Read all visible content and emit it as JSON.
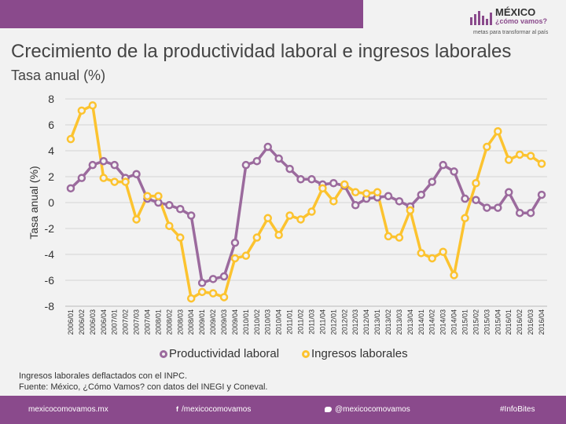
{
  "header": {
    "logo_title": "MÉXICO",
    "logo_subtitle": "¿cómo vamos?",
    "logo_tagline": "metas para transformar al país"
  },
  "title": "Crecimiento de la productividad laboral e ingresos laborales",
  "subtitle": "Tasa anual (%)",
  "notes": [
    "Ingresos laborales deflactados con el INPC.",
    "Fuente: México, ¿Cómo Vamos? con datos del INEGI y Coneval."
  ],
  "footer": {
    "website": "mexicocomovamos.mx",
    "facebook": "/mexicocomovamos",
    "twitter": "@mexicocomovamos",
    "hashtag": "#InfoBites"
  },
  "colors": {
    "accent": "#8a4a8c",
    "productividad": "#9b6a9d",
    "ingresos": "#fcc32f"
  },
  "chart_data": {
    "type": "line",
    "title": "Crecimiento de la productividad laboral e ingresos laborales",
    "ylabel": "Tasa anual (%)",
    "xlabel": "",
    "ylim": [
      -8,
      8
    ],
    "yticks": [
      8,
      6,
      4,
      2,
      0,
      -2,
      -4,
      -6,
      -8
    ],
    "grid": true,
    "legend_position": "bottom",
    "categories": [
      "2006/01",
      "2006/02",
      "2006/03",
      "2006/04",
      "2007/01",
      "2007/02",
      "2007/03",
      "2007/04",
      "2008/01",
      "2008/02",
      "2008/03",
      "2008/04",
      "2009/01",
      "2009/02",
      "2009/03",
      "2009/04",
      "2010/01",
      "2010/02",
      "2010/03",
      "2010/04",
      "2011/01",
      "2011/02",
      "2011/03",
      "2011/04",
      "2012/01",
      "2012/02",
      "2012/03",
      "2012/04",
      "2013/01",
      "2013/02",
      "2013/03",
      "2013/04",
      "2014/01",
      "2014/02",
      "2014/03",
      "2014/04",
      "2015/01",
      "2015/02",
      "2015/03",
      "2015/04",
      "2016/01",
      "2016/02",
      "2016/03",
      "2016/04"
    ],
    "series": [
      {
        "name": "Productividad laboral",
        "values": [
          1.1,
          1.9,
          2.9,
          3.2,
          2.9,
          1.9,
          2.2,
          0.3,
          0.0,
          -0.2,
          -0.5,
          -1.0,
          -6.2,
          -5.9,
          -5.7,
          -3.1,
          2.9,
          3.2,
          4.3,
          3.4,
          2.6,
          1.8,
          1.8,
          1.4,
          1.5,
          1.3,
          -0.2,
          0.3,
          0.4,
          0.5,
          0.1,
          -0.3,
          0.6,
          1.6,
          2.9,
          2.4,
          0.3,
          0.2,
          -0.4,
          -0.4,
          0.8,
          -0.8,
          -0.8,
          0.6
        ]
      },
      {
        "name": "Ingresos laborales",
        "values": [
          4.9,
          7.1,
          7.5,
          1.9,
          1.6,
          1.6,
          -1.3,
          0.5,
          0.5,
          -1.8,
          -2.7,
          -7.4,
          -6.9,
          -7.0,
          -7.3,
          -4.3,
          -4.1,
          -2.7,
          -1.2,
          -2.5,
          -1.0,
          -1.3,
          -0.7,
          1.1,
          0.1,
          1.4,
          0.8,
          0.7,
          0.8,
          -2.6,
          -2.7,
          -0.6,
          -3.9,
          -4.3,
          -3.8,
          -5.6,
          -1.2,
          1.5,
          4.3,
          5.5,
          3.3,
          3.7,
          3.6,
          3.0
        ]
      }
    ]
  }
}
